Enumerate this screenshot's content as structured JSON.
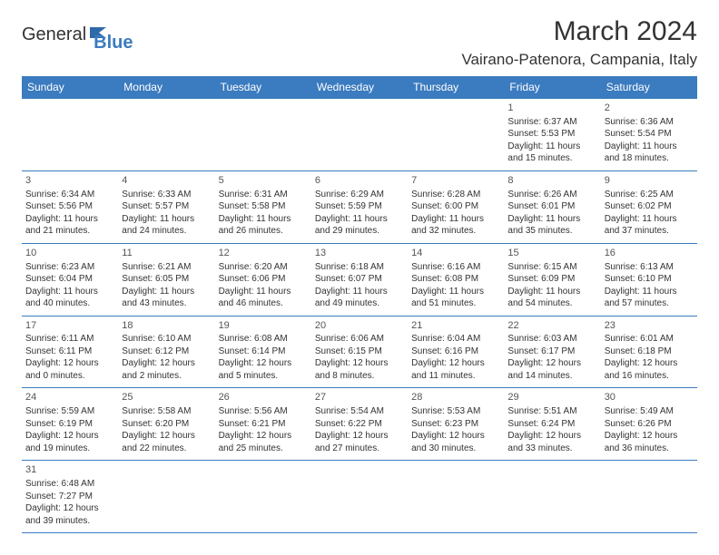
{
  "brand": {
    "part1": "General",
    "part2": "Blue"
  },
  "title": "March 2024",
  "location": "Vairano-Patenora, Campania, Italy",
  "colors": {
    "header_bg": "#3b7bbf",
    "header_fg": "#ffffff",
    "border": "#3b7bbf",
    "text": "#333333",
    "background": "#ffffff"
  },
  "typography": {
    "title_fontsize": 30,
    "location_fontsize": 17,
    "th_fontsize": 12,
    "cell_fontsize": 10
  },
  "dayHeaders": [
    "Sunday",
    "Monday",
    "Tuesday",
    "Wednesday",
    "Thursday",
    "Friday",
    "Saturday"
  ],
  "weeks": [
    [
      null,
      null,
      null,
      null,
      null,
      {
        "n": "1",
        "sr": "Sunrise: 6:37 AM",
        "ss": "Sunset: 5:53 PM",
        "dl1": "Daylight: 11 hours",
        "dl2": "and 15 minutes."
      },
      {
        "n": "2",
        "sr": "Sunrise: 6:36 AM",
        "ss": "Sunset: 5:54 PM",
        "dl1": "Daylight: 11 hours",
        "dl2": "and 18 minutes."
      }
    ],
    [
      {
        "n": "3",
        "sr": "Sunrise: 6:34 AM",
        "ss": "Sunset: 5:56 PM",
        "dl1": "Daylight: 11 hours",
        "dl2": "and 21 minutes."
      },
      {
        "n": "4",
        "sr": "Sunrise: 6:33 AM",
        "ss": "Sunset: 5:57 PM",
        "dl1": "Daylight: 11 hours",
        "dl2": "and 24 minutes."
      },
      {
        "n": "5",
        "sr": "Sunrise: 6:31 AM",
        "ss": "Sunset: 5:58 PM",
        "dl1": "Daylight: 11 hours",
        "dl2": "and 26 minutes."
      },
      {
        "n": "6",
        "sr": "Sunrise: 6:29 AM",
        "ss": "Sunset: 5:59 PM",
        "dl1": "Daylight: 11 hours",
        "dl2": "and 29 minutes."
      },
      {
        "n": "7",
        "sr": "Sunrise: 6:28 AM",
        "ss": "Sunset: 6:00 PM",
        "dl1": "Daylight: 11 hours",
        "dl2": "and 32 minutes."
      },
      {
        "n": "8",
        "sr": "Sunrise: 6:26 AM",
        "ss": "Sunset: 6:01 PM",
        "dl1": "Daylight: 11 hours",
        "dl2": "and 35 minutes."
      },
      {
        "n": "9",
        "sr": "Sunrise: 6:25 AM",
        "ss": "Sunset: 6:02 PM",
        "dl1": "Daylight: 11 hours",
        "dl2": "and 37 minutes."
      }
    ],
    [
      {
        "n": "10",
        "sr": "Sunrise: 6:23 AM",
        "ss": "Sunset: 6:04 PM",
        "dl1": "Daylight: 11 hours",
        "dl2": "and 40 minutes."
      },
      {
        "n": "11",
        "sr": "Sunrise: 6:21 AM",
        "ss": "Sunset: 6:05 PM",
        "dl1": "Daylight: 11 hours",
        "dl2": "and 43 minutes."
      },
      {
        "n": "12",
        "sr": "Sunrise: 6:20 AM",
        "ss": "Sunset: 6:06 PM",
        "dl1": "Daylight: 11 hours",
        "dl2": "and 46 minutes."
      },
      {
        "n": "13",
        "sr": "Sunrise: 6:18 AM",
        "ss": "Sunset: 6:07 PM",
        "dl1": "Daylight: 11 hours",
        "dl2": "and 49 minutes."
      },
      {
        "n": "14",
        "sr": "Sunrise: 6:16 AM",
        "ss": "Sunset: 6:08 PM",
        "dl1": "Daylight: 11 hours",
        "dl2": "and 51 minutes."
      },
      {
        "n": "15",
        "sr": "Sunrise: 6:15 AM",
        "ss": "Sunset: 6:09 PM",
        "dl1": "Daylight: 11 hours",
        "dl2": "and 54 minutes."
      },
      {
        "n": "16",
        "sr": "Sunrise: 6:13 AM",
        "ss": "Sunset: 6:10 PM",
        "dl1": "Daylight: 11 hours",
        "dl2": "and 57 minutes."
      }
    ],
    [
      {
        "n": "17",
        "sr": "Sunrise: 6:11 AM",
        "ss": "Sunset: 6:11 PM",
        "dl1": "Daylight: 12 hours",
        "dl2": "and 0 minutes."
      },
      {
        "n": "18",
        "sr": "Sunrise: 6:10 AM",
        "ss": "Sunset: 6:12 PM",
        "dl1": "Daylight: 12 hours",
        "dl2": "and 2 minutes."
      },
      {
        "n": "19",
        "sr": "Sunrise: 6:08 AM",
        "ss": "Sunset: 6:14 PM",
        "dl1": "Daylight: 12 hours",
        "dl2": "and 5 minutes."
      },
      {
        "n": "20",
        "sr": "Sunrise: 6:06 AM",
        "ss": "Sunset: 6:15 PM",
        "dl1": "Daylight: 12 hours",
        "dl2": "and 8 minutes."
      },
      {
        "n": "21",
        "sr": "Sunrise: 6:04 AM",
        "ss": "Sunset: 6:16 PM",
        "dl1": "Daylight: 12 hours",
        "dl2": "and 11 minutes."
      },
      {
        "n": "22",
        "sr": "Sunrise: 6:03 AM",
        "ss": "Sunset: 6:17 PM",
        "dl1": "Daylight: 12 hours",
        "dl2": "and 14 minutes."
      },
      {
        "n": "23",
        "sr": "Sunrise: 6:01 AM",
        "ss": "Sunset: 6:18 PM",
        "dl1": "Daylight: 12 hours",
        "dl2": "and 16 minutes."
      }
    ],
    [
      {
        "n": "24",
        "sr": "Sunrise: 5:59 AM",
        "ss": "Sunset: 6:19 PM",
        "dl1": "Daylight: 12 hours",
        "dl2": "and 19 minutes."
      },
      {
        "n": "25",
        "sr": "Sunrise: 5:58 AM",
        "ss": "Sunset: 6:20 PM",
        "dl1": "Daylight: 12 hours",
        "dl2": "and 22 minutes."
      },
      {
        "n": "26",
        "sr": "Sunrise: 5:56 AM",
        "ss": "Sunset: 6:21 PM",
        "dl1": "Daylight: 12 hours",
        "dl2": "and 25 minutes."
      },
      {
        "n": "27",
        "sr": "Sunrise: 5:54 AM",
        "ss": "Sunset: 6:22 PM",
        "dl1": "Daylight: 12 hours",
        "dl2": "and 27 minutes."
      },
      {
        "n": "28",
        "sr": "Sunrise: 5:53 AM",
        "ss": "Sunset: 6:23 PM",
        "dl1": "Daylight: 12 hours",
        "dl2": "and 30 minutes."
      },
      {
        "n": "29",
        "sr": "Sunrise: 5:51 AM",
        "ss": "Sunset: 6:24 PM",
        "dl1": "Daylight: 12 hours",
        "dl2": "and 33 minutes."
      },
      {
        "n": "30",
        "sr": "Sunrise: 5:49 AM",
        "ss": "Sunset: 6:26 PM",
        "dl1": "Daylight: 12 hours",
        "dl2": "and 36 minutes."
      }
    ],
    [
      {
        "n": "31",
        "sr": "Sunrise: 6:48 AM",
        "ss": "Sunset: 7:27 PM",
        "dl1": "Daylight: 12 hours",
        "dl2": "and 39 minutes."
      },
      null,
      null,
      null,
      null,
      null,
      null
    ]
  ]
}
